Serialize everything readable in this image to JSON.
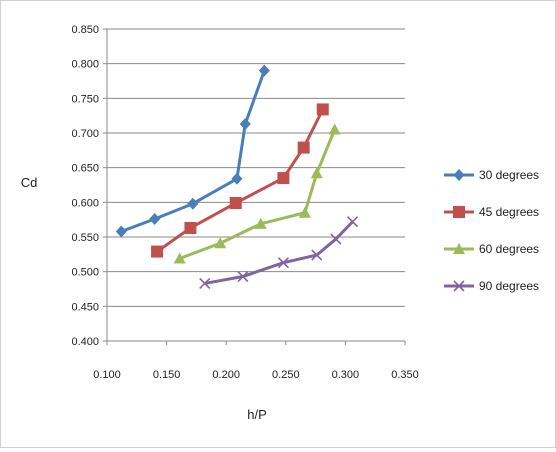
{
  "chart_data": {
    "type": "line",
    "title": "",
    "xlabel": "h/P",
    "ylabel": "Cd",
    "xlim": [
      0.1,
      0.35
    ],
    "ylim": [
      0.4,
      0.85
    ],
    "x_ticks": [
      "0.100",
      "0.150",
      "0.200",
      "0.250",
      "0.300",
      "0.350"
    ],
    "x_tick_values": [
      0.1,
      0.15,
      0.2,
      0.25,
      0.3,
      0.35
    ],
    "y_ticks": [
      "0.400",
      "0.450",
      "0.500",
      "0.550",
      "0.600",
      "0.650",
      "0.700",
      "0.750",
      "0.800",
      "0.850"
    ],
    "y_tick_values": [
      0.4,
      0.45,
      0.5,
      0.55,
      0.6,
      0.65,
      0.7,
      0.75,
      0.8,
      0.85
    ],
    "grid": "horizontal",
    "legend_position": "right",
    "series": [
      {
        "name": "30 degrees",
        "color": "#4a7ebb",
        "marker": "diamond",
        "x": [
          0.112,
          0.14,
          0.172,
          0.209,
          0.216,
          0.232
        ],
        "y": [
          0.558,
          0.576,
          0.598,
          0.634,
          0.713,
          0.79
        ]
      },
      {
        "name": "45 degrees",
        "color": "#c0504d",
        "marker": "square",
        "x": [
          0.142,
          0.17,
          0.208,
          0.248,
          0.265,
          0.281
        ],
        "y": [
          0.529,
          0.563,
          0.599,
          0.635,
          0.679,
          0.734
        ]
      },
      {
        "name": "60 degrees",
        "color": "#9bbb59",
        "marker": "triangle",
        "x": [
          0.161,
          0.195,
          0.229,
          0.266,
          0.276,
          0.291
        ],
        "y": [
          0.519,
          0.541,
          0.569,
          0.585,
          0.642,
          0.705
        ]
      },
      {
        "name": "90 degrees",
        "color": "#8064a2",
        "marker": "x",
        "x": [
          0.182,
          0.214,
          0.248,
          0.276,
          0.292,
          0.306
        ],
        "y": [
          0.483,
          0.493,
          0.513,
          0.524,
          0.547,
          0.572
        ]
      }
    ]
  }
}
